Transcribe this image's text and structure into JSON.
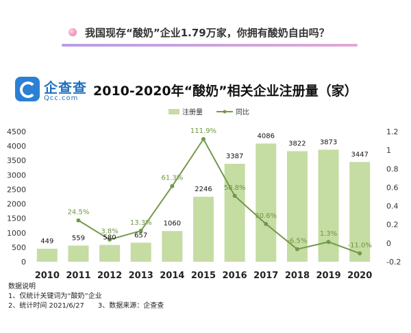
{
  "header": {
    "headline": "我国现存“酸奶”企业1.79万家，你拥有酸奶自由吗？"
  },
  "logo": {
    "name": "企查查",
    "domain": "Qcc.com"
  },
  "colors": {
    "bar": "#c5dca3",
    "line": "#72984a",
    "line_label": "#6e963d",
    "accent_gradient_start": "#b79de6",
    "accent_gradient_end": "#e2a7d6"
  },
  "chart_data": {
    "type": "bar",
    "title": "2010-2020年“酸奶”相关企业注册量（家）",
    "categories": [
      "2010",
      "2011",
      "2012",
      "2013",
      "2014",
      "2015",
      "2016",
      "2017",
      "2018",
      "2019",
      "2020"
    ],
    "series": [
      {
        "name": "注册量",
        "type": "bar",
        "axis": "left",
        "values": [
          449,
          559,
          580,
          657,
          1060,
          2246,
          3387,
          4086,
          3822,
          3873,
          3447
        ],
        "labels": [
          "449",
          "559",
          "580",
          "657",
          "1060",
          "2246",
          "3387",
          "4086",
          "3822",
          "3873",
          "3447"
        ]
      },
      {
        "name": "同比",
        "type": "line",
        "axis": "right",
        "values": [
          null,
          0.245,
          0.038,
          0.133,
          0.613,
          1.119,
          0.508,
          0.206,
          -0.065,
          0.013,
          -0.11
        ],
        "labels": [
          "",
          "24.5%",
          "3.8%",
          "13.3%",
          "61.3%",
          "111.9%",
          "50.8%",
          "20.6%",
          "-6.5%",
          "1.3%",
          "-11.0%"
        ]
      }
    ],
    "y_left": {
      "ylim": [
        0,
        4500
      ],
      "ticks": [
        "0",
        "500",
        "1000",
        "1500",
        "2000",
        "2500",
        "3000",
        "3500",
        "4000",
        "4500"
      ]
    },
    "y_right": {
      "ylim": [
        -0.2,
        1.2
      ],
      "ticks": [
        "-0.2",
        "0",
        "0.2",
        "0.4",
        "0.6",
        "0.8",
        "1",
        "1.2"
      ]
    },
    "legend_position": "top-center",
    "grid": false
  },
  "notes": {
    "heading": "数据说明",
    "item1": "1、仅统计关键词为“酸奶”企业",
    "item2": "2、统计时间 2021/6/27",
    "item3": "3、数据来源：企查查"
  }
}
